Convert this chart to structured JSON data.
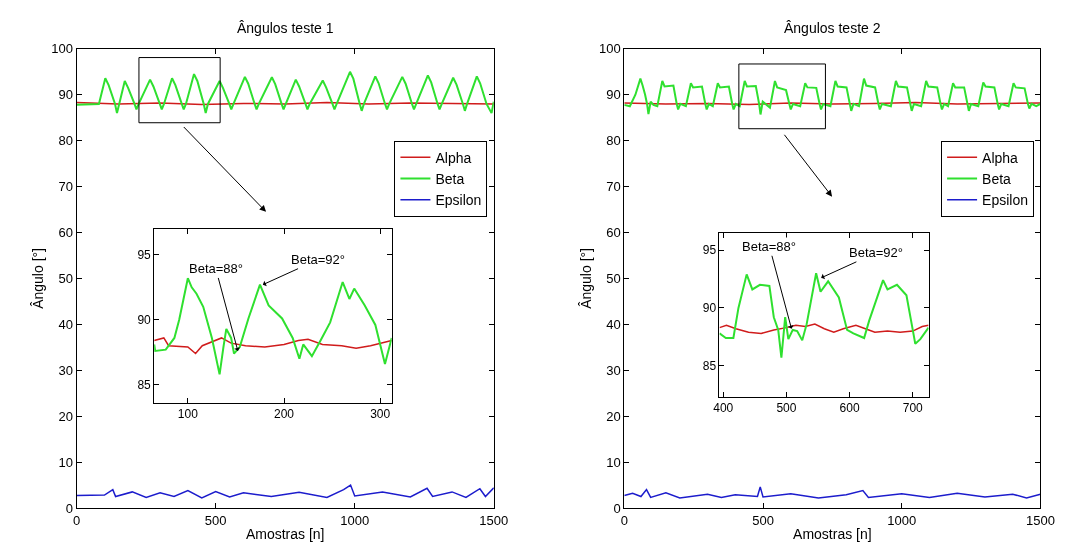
{
  "chart_data": [
    {
      "type": "line",
      "title": "Ângulos teste 1",
      "xlabel": "Amostras [n]",
      "ylabel": "Ângulo [°]",
      "xlim": [
        0,
        1500
      ],
      "ylim": [
        0,
        100
      ],
      "xticks": [
        0,
        500,
        1000,
        1500
      ],
      "yticks": [
        0,
        10,
        20,
        30,
        40,
        50,
        60,
        70,
        80,
        90,
        100
      ],
      "legend": "top right",
      "series": [
        {
          "name": "Alpha",
          "color": "#d01c1c",
          "x": [
            0,
            150,
            300,
            450,
            600,
            750,
            900,
            1050,
            1200,
            1350,
            1500
          ],
          "values": [
            88.3,
            88,
            88.2,
            87.9,
            88.1,
            88,
            88.3,
            88,
            88.2,
            88.1,
            88
          ]
        },
        {
          "name": "Beta",
          "color": "#2fe02f",
          "x": [
            0,
            80,
            103,
            115,
            138,
            145,
            153,
            173,
            185,
            208,
            215,
            223,
            264,
            276,
            299,
            306,
            314,
            343,
            355,
            378,
            385,
            393,
            422,
            434,
            457,
            464,
            472,
            514,
            526,
            549,
            556,
            564,
            605,
            617,
            640,
            647,
            655,
            702,
            714,
            737,
            744,
            752,
            788,
            800,
            823,
            830,
            838,
            885,
            897,
            920,
            927,
            935,
            983,
            995,
            1018,
            1025,
            1033,
            1074,
            1086,
            1109,
            1116,
            1124,
            1171,
            1183,
            1206,
            1213,
            1221,
            1263,
            1275,
            1298,
            1305,
            1313,
            1354,
            1366,
            1389,
            1396,
            1404,
            1439,
            1451,
            1474,
            1492,
            1500
          ],
          "values": [
            87.8,
            88,
            93.6,
            92.1,
            88,
            86,
            88,
            93,
            91.5,
            88,
            86.8,
            88,
            93.3,
            91.8,
            88,
            86.8,
            88,
            93.6,
            92.1,
            88,
            86.8,
            88,
            94.5,
            93,
            88,
            86,
            88,
            93,
            91.5,
            88,
            86.8,
            88,
            93.9,
            92.4,
            88,
            86.8,
            88,
            93.8,
            92.3,
            88,
            86.8,
            88,
            93.3,
            91.8,
            88,
            86.8,
            88,
            93.1,
            91.6,
            88,
            86.8,
            88,
            95,
            93.5,
            88,
            86.5,
            88,
            94,
            92.5,
            88,
            86.8,
            88,
            93.9,
            92.4,
            88,
            86.8,
            88,
            94.2,
            92.7,
            88,
            86.8,
            88,
            93.7,
            92.2,
            88,
            86.5,
            88,
            94,
            92.5,
            88,
            86,
            88.5
          ]
        },
        {
          "name": "Epsilon",
          "color": "#1c1ccc",
          "x": [
            0,
            100,
            130,
            140,
            200,
            250,
            300,
            350,
            400,
            450,
            500,
            550,
            600,
            700,
            800,
            900,
            960,
            985,
            1000,
            1100,
            1200,
            1260,
            1280,
            1350,
            1400,
            1450,
            1470,
            1500
          ],
          "values": [
            2.7,
            2.8,
            4,
            2.5,
            3.5,
            2.3,
            3.3,
            2.5,
            3.8,
            2.2,
            3.6,
            2.4,
            3.3,
            2.5,
            3.4,
            2.3,
            4,
            5,
            2.6,
            3.5,
            2.4,
            4.3,
            2.5,
            3.5,
            2.3,
            4.2,
            2.5,
            4.4
          ]
        }
      ]
    },
    {
      "type": "line",
      "xlim": [
        65,
        312
      ],
      "ylim": [
        83.6,
        97
      ],
      "xticks": [
        100,
        200,
        300
      ],
      "yticks": [
        85,
        90,
        95
      ],
      "annotations": [
        {
          "text": "Beta=88°",
          "x": 152,
          "y": 87.6
        },
        {
          "text": "Beta=92°",
          "x": 178,
          "y": 92.7
        }
      ],
      "series": [
        {
          "color": "#d01c1c",
          "x": [
            65,
            75,
            80,
            100,
            108,
            115,
            135,
            145,
            160,
            180,
            200,
            215,
            225,
            240,
            260,
            275,
            290,
            312
          ],
          "values": [
            88.4,
            88.6,
            88,
            87.9,
            87.4,
            88,
            88.6,
            88.2,
            88,
            87.9,
            88.1,
            88.4,
            88.5,
            88.1,
            88,
            87.8,
            88,
            88.4
          ]
        },
        {
          "color": "#2fe02f",
          "x": [
            65,
            66,
            77,
            86,
            91,
            100,
            104,
            109,
            116,
            125,
            133,
            137,
            140,
            145,
            148,
            154,
            163,
            175,
            184,
            198,
            209,
            216,
            220,
            229,
            238,
            248,
            261,
            268,
            273,
            284,
            295,
            305,
            312
          ],
          "values": [
            88.1,
            87.6,
            87.7,
            88.6,
            90,
            93.2,
            92.5,
            92,
            91,
            88.6,
            85.8,
            87.9,
            89.3,
            88.6,
            87.4,
            87.9,
            90.1,
            92.7,
            91.1,
            90.1,
            88.6,
            87,
            88.1,
            87.2,
            88.4,
            89.8,
            92.9,
            91.6,
            92.4,
            91.1,
            89.6,
            86.6,
            88.6
          ]
        }
      ]
    },
    {
      "type": "line",
      "title": "Ângulos teste 2",
      "xlabel": "Amostras [n]",
      "ylabel": "Ângulo [°]",
      "xlim": [
        0,
        1500
      ],
      "ylim": [
        0,
        100
      ],
      "xticks": [
        0,
        500,
        1000,
        1500
      ],
      "yticks": [
        0,
        10,
        20,
        30,
        40,
        50,
        60,
        70,
        80,
        90,
        100
      ],
      "legend": "top right",
      "series": [
        {
          "name": "Alpha",
          "color": "#d01c1c",
          "x": [
            0,
            150,
            300,
            450,
            600,
            750,
            900,
            1050,
            1200,
            1350,
            1500
          ],
          "values": [
            88.2,
            88,
            88.1,
            87.9,
            88.2,
            88,
            88.1,
            88.3,
            88,
            88.1,
            88.2
          ]
        },
        {
          "name": "Beta",
          "color": "#2fe02f",
          "x": [
            0,
            20,
            40,
            58,
            66,
            75,
            82,
            87,
            95,
            105,
            119,
            137,
            145,
            177,
            189,
            194,
            202,
            222,
            240,
            248,
            280,
            292,
            297,
            305,
            319,
            337,
            345,
            377,
            389,
            394,
            402,
            416,
            434,
            442,
            474,
            486,
            491,
            499,
            525,
            543,
            551,
            583,
            595,
            600,
            608,
            634,
            652,
            660,
            692,
            704,
            709,
            717,
            743,
            761,
            769,
            801,
            813,
            818,
            826,
            846,
            864,
            872,
            904,
            916,
            921,
            929,
            961,
            979,
            987,
            1019,
            1031,
            1036,
            1044,
            1070,
            1088,
            1096,
            1128,
            1140,
            1145,
            1153,
            1167,
            1185,
            1193,
            1225,
            1237,
            1242,
            1250,
            1276,
            1294,
            1302,
            1334,
            1346,
            1351,
            1359,
            1385,
            1403,
            1411,
            1443,
            1455,
            1460,
            1468,
            1485,
            1500
          ],
          "values": [
            87.8,
            87.5,
            90,
            93.5,
            92,
            90,
            88,
            85.8,
            88.5,
            87.8,
            87.5,
            93,
            91.8,
            92,
            88,
            86.8,
            88,
            87.5,
            92.5,
            91.6,
            91.8,
            88,
            86.8,
            88,
            87.5,
            92.5,
            91.6,
            91.8,
            88,
            86.8,
            88,
            87.5,
            93,
            91.8,
            91.9,
            88,
            85.7,
            88.5,
            87.2,
            93,
            91.6,
            91,
            88,
            86.8,
            88,
            87.5,
            92.5,
            91.6,
            91.5,
            88,
            86.8,
            88,
            87.5,
            93,
            91.8,
            91.6,
            88,
            86.5,
            88,
            87.5,
            93.5,
            92,
            91.6,
            88,
            86.8,
            88,
            87.5,
            93,
            91.8,
            91.6,
            88,
            86.5,
            88,
            87.5,
            93,
            91.8,
            91.6,
            88,
            86.8,
            88,
            87.5,
            92.5,
            91.6,
            91.6,
            88,
            86.5,
            88,
            87.5,
            92.7,
            91.8,
            91.6,
            88,
            86.8,
            88,
            87.5,
            92.5,
            91.6,
            91.4,
            88,
            87,
            88,
            87.5,
            88
          ]
        },
        {
          "name": "Epsilon",
          "color": "#1c1ccc",
          "x": [
            0,
            30,
            60,
            80,
            95,
            150,
            200,
            300,
            350,
            400,
            480,
            490,
            500,
            600,
            700,
            800,
            860,
            880,
            1000,
            1100,
            1200,
            1300,
            1400,
            1450,
            1500
          ],
          "values": [
            2.7,
            3.2,
            2.5,
            4,
            2.3,
            3.3,
            2.2,
            3,
            2.3,
            2.9,
            2.5,
            4.6,
            2.4,
            3.1,
            2.2,
            2.9,
            3.8,
            2.3,
            3.1,
            2.3,
            3.2,
            2.4,
            3,
            2.2,
            3
          ]
        }
      ]
    },
    {
      "type": "line",
      "xlim": [
        394,
        725
      ],
      "ylim": [
        82.3,
        96.5
      ],
      "xticks": [
        400,
        500,
        600,
        700
      ],
      "yticks": [
        85,
        90,
        95
      ],
      "annotations": [
        {
          "text": "Beta=88°",
          "x": 508,
          "y": 88.2
        },
        {
          "text": "Beta=92°",
          "x": 555,
          "y": 92.6
        }
      ],
      "series": [
        {
          "color": "#d01c1c",
          "x": [
            394,
            405,
            420,
            440,
            460,
            480,
            500,
            515,
            530,
            545,
            560,
            575,
            590,
            610,
            625,
            640,
            660,
            680,
            700,
            715,
            725
          ],
          "values": [
            88.3,
            88.5,
            88.2,
            87.9,
            87.8,
            88.1,
            88.3,
            88.5,
            88.4,
            88.6,
            88.2,
            87.9,
            88.2,
            88.5,
            88.2,
            87.9,
            88,
            87.9,
            88,
            88.4,
            88.5
          ]
        },
        {
          "color": "#2fe02f",
          "x": [
            394,
            404,
            416,
            424,
            437,
            446,
            458,
            473,
            480,
            487,
            492,
            498,
            503,
            510,
            517,
            525,
            532,
            547,
            554,
            566,
            583,
            596,
            606,
            623,
            631,
            653,
            660,
            675,
            690,
            700,
            704,
            712,
            725
          ],
          "values": [
            87.8,
            87.4,
            87.4,
            90,
            92.9,
            91.6,
            92,
            91.9,
            89.2,
            88.1,
            85.7,
            89.2,
            87.3,
            88.1,
            88,
            87.2,
            88.6,
            93,
            91.4,
            92.3,
            90.9,
            88.1,
            87.8,
            87.4,
            88.9,
            92.4,
            91.6,
            92,
            91.1,
            88.1,
            86.9,
            87.3,
            88.3
          ]
        }
      ]
    }
  ]
}
